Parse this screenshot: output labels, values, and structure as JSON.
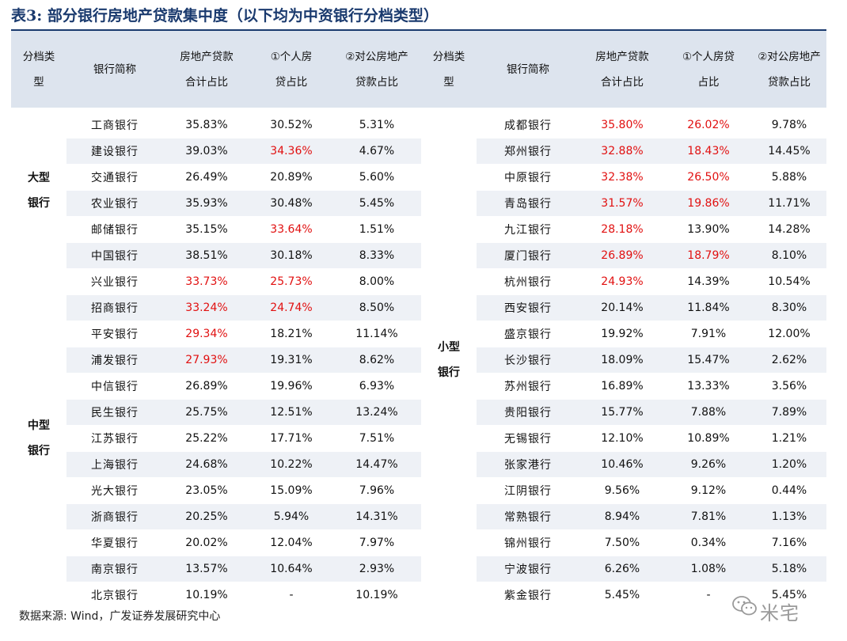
{
  "title": "表3:  部分银行房地产贷款集中度（以下均为中资银行分档类型）",
  "headers": {
    "category": [
      "分档类",
      "型"
    ],
    "bank": "银行简称",
    "total": [
      "房地产贷款",
      "合计占比"
    ],
    "personal_left": [
      "①个人房",
      "贷占比"
    ],
    "corporate_left": [
      "②对公房地产",
      "贷款占比"
    ],
    "personal_right": [
      "①个人房贷",
      "占比"
    ],
    "corporate_right": [
      "②对公房地产",
      "贷款占比"
    ]
  },
  "groups": {
    "large": [
      "大型",
      "银行"
    ],
    "medium": [
      "中型",
      "银行"
    ],
    "small": [
      "小型",
      "银行"
    ]
  },
  "colors": {
    "header_bg": "#dde4ee",
    "zebra_bg": "#eef1f6",
    "highlight": "#e11010",
    "title": "#1a3a6e"
  },
  "rows": [
    {
      "left": {
        "bank": "工商银行",
        "total": "35.83%",
        "personal": "30.52%",
        "corporate": "5.31%"
      },
      "right": {
        "bank": "成都银行",
        "total": "35.80%",
        "personal": "26.02%",
        "corporate": "9.78%",
        "hl": [
          "total",
          "personal"
        ]
      }
    },
    {
      "left": {
        "bank": "建设银行",
        "total": "39.03%",
        "personal": "34.36%",
        "corporate": "4.67%",
        "hl": [
          "personal"
        ]
      },
      "right": {
        "bank": "郑州银行",
        "total": "32.88%",
        "personal": "18.43%",
        "corporate": "14.45%",
        "hl": [
          "total",
          "personal"
        ]
      }
    },
    {
      "left": {
        "bank": "交通银行",
        "total": "26.49%",
        "personal": "20.89%",
        "corporate": "5.60%"
      },
      "right": {
        "bank": "中原银行",
        "total": "32.38%",
        "personal": "26.50%",
        "corporate": "5.88%",
        "hl": [
          "total",
          "personal"
        ]
      }
    },
    {
      "left": {
        "bank": "农业银行",
        "total": "35.93%",
        "personal": "30.48%",
        "corporate": "5.45%"
      },
      "right": {
        "bank": "青岛银行",
        "total": "31.57%",
        "personal": "19.86%",
        "corporate": "11.71%",
        "hl": [
          "total",
          "personal"
        ]
      }
    },
    {
      "left": {
        "bank": "邮储银行",
        "total": "35.15%",
        "personal": "33.64%",
        "corporate": "1.51%",
        "hl": [
          "personal"
        ]
      },
      "right": {
        "bank": "九江银行",
        "total": "28.18%",
        "personal": "13.90%",
        "corporate": "14.28%",
        "hl": [
          "total"
        ]
      }
    },
    {
      "left": {
        "bank": "中国银行",
        "total": "38.51%",
        "personal": "30.18%",
        "corporate": "8.33%"
      },
      "right": {
        "bank": "厦门银行",
        "total": "26.89%",
        "personal": "18.79%",
        "corporate": "8.10%",
        "hl": [
          "total",
          "personal"
        ]
      }
    },
    {
      "left": {
        "bank": "兴业银行",
        "total": "33.73%",
        "personal": "25.73%",
        "corporate": "8.00%",
        "hl": [
          "total",
          "personal"
        ]
      },
      "right": {
        "bank": "杭州银行",
        "total": "24.93%",
        "personal": "14.39%",
        "corporate": "10.54%",
        "hl": [
          "total"
        ]
      }
    },
    {
      "left": {
        "bank": "招商银行",
        "total": "33.24%",
        "personal": "24.74%",
        "corporate": "8.50%",
        "hl": [
          "total",
          "personal"
        ]
      },
      "right": {
        "bank": "西安银行",
        "total": "20.14%",
        "personal": "11.84%",
        "corporate": "8.30%"
      }
    },
    {
      "left": {
        "bank": "平安银行",
        "total": "29.34%",
        "personal": "18.21%",
        "corporate": "11.14%",
        "hl": [
          "total"
        ]
      },
      "right": {
        "bank": "盛京银行",
        "total": "19.92%",
        "personal": "7.91%",
        "corporate": "12.00%"
      }
    },
    {
      "left": {
        "bank": "浦发银行",
        "total": "27.93%",
        "personal": "19.31%",
        "corporate": "8.62%",
        "hl": [
          "total"
        ]
      },
      "right": {
        "bank": "长沙银行",
        "total": "18.09%",
        "personal": "15.47%",
        "corporate": "2.62%"
      }
    },
    {
      "left": {
        "bank": "中信银行",
        "total": "26.89%",
        "personal": "19.96%",
        "corporate": "6.93%"
      },
      "right": {
        "bank": "苏州银行",
        "total": "16.89%",
        "personal": "13.33%",
        "corporate": "3.56%"
      }
    },
    {
      "left": {
        "bank": "民生银行",
        "total": "25.75%",
        "personal": "12.51%",
        "corporate": "13.24%"
      },
      "right": {
        "bank": "贵阳银行",
        "total": "15.77%",
        "personal": "7.88%",
        "corporate": "7.89%"
      }
    },
    {
      "left": {
        "bank": "江苏银行",
        "total": "25.22%",
        "personal": "17.71%",
        "corporate": "7.51%"
      },
      "right": {
        "bank": "无锡银行",
        "total": "12.10%",
        "personal": "10.89%",
        "corporate": "1.21%"
      }
    },
    {
      "left": {
        "bank": "上海银行",
        "total": "24.68%",
        "personal": "10.22%",
        "corporate": "14.47%"
      },
      "right": {
        "bank": "张家港行",
        "total": "10.46%",
        "personal": "9.26%",
        "corporate": "1.20%"
      }
    },
    {
      "left": {
        "bank": "光大银行",
        "total": "23.05%",
        "personal": "15.09%",
        "corporate": "7.96%"
      },
      "right": {
        "bank": "江阴银行",
        "total": "9.56%",
        "personal": "9.12%",
        "corporate": "0.44%"
      }
    },
    {
      "left": {
        "bank": "浙商银行",
        "total": "20.25%",
        "personal": "5.94%",
        "corporate": "14.31%"
      },
      "right": {
        "bank": "常熟银行",
        "total": "8.94%",
        "personal": "7.81%",
        "corporate": "1.13%"
      }
    },
    {
      "left": {
        "bank": "华夏银行",
        "total": "20.02%",
        "personal": "12.04%",
        "corporate": "7.97%"
      },
      "right": {
        "bank": "锦州银行",
        "total": "7.50%",
        "personal": "0.34%",
        "corporate": "7.16%"
      }
    },
    {
      "left": {
        "bank": "南京银行",
        "total": "13.57%",
        "personal": "10.64%",
        "corporate": "2.93%"
      },
      "right": {
        "bank": "宁波银行",
        "total": "6.26%",
        "personal": "1.08%",
        "corporate": "5.18%"
      }
    },
    {
      "left": {
        "bank": "北京银行",
        "total": "10.19%",
        "personal": "-",
        "corporate": "10.19%"
      },
      "right": {
        "bank": "紫金银行",
        "total": "5.45%",
        "personal": "-",
        "corporate": "5.45%"
      }
    }
  ],
  "source": "数据来源: Wind，广发证券发展研究中心",
  "watermark": {
    "text": "米宅",
    "icon": "wechat-logo-icon"
  }
}
